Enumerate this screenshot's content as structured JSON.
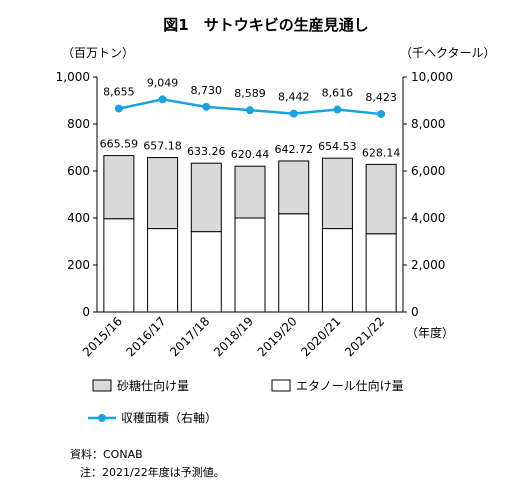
{
  "chart_data": {
    "type": "bar",
    "title": "図1　サトウキビの生産見通し",
    "left_unit": "（百万トン）",
    "right_unit": "（千ヘクタール）",
    "x_unit": "（年度）",
    "categories": [
      "2015/16",
      "2016/17",
      "2017/18",
      "2018/19",
      "2019/20",
      "2020/21",
      "2021/22"
    ],
    "left_ylim": [
      0,
      1000
    ],
    "left_ticks": [
      0,
      200,
      400,
      600,
      800,
      1000
    ],
    "left_tick_labels": [
      "0",
      "200",
      "400",
      "600",
      "800",
      "1,000"
    ],
    "right_ylim": [
      0,
      10000
    ],
    "right_ticks": [
      0,
      2000,
      4000,
      6000,
      8000,
      10000
    ],
    "right_tick_labels": [
      "0",
      "2,000",
      "4,000",
      "6,000",
      "8,000",
      "10,000"
    ],
    "series": [
      {
        "name": "エタノール仕向け量",
        "kind": "bar",
        "color": "#ffffff",
        "values": [
          397,
          355,
          342,
          400,
          418,
          355,
          333
        ]
      },
      {
        "name": "砂糖仕向け量",
        "kind": "bar",
        "color": "#d9d9d9",
        "values": [
          268.59,
          302.18,
          291.26,
          220.44,
          224.72,
          299.53,
          295.14
        ]
      },
      {
        "name": "収穫面積（右軸）",
        "kind": "line",
        "axis": "right",
        "color": "#1aa3e0",
        "values": [
          8655,
          9049,
          8730,
          8589,
          8442,
          8616,
          8423
        ]
      }
    ],
    "bar_total_labels": [
      "665.59",
      "657.18",
      "633.26",
      "620.44",
      "642.72",
      "654.53",
      "628.14"
    ],
    "line_labels": [
      "8,655",
      "9,049",
      "8,730",
      "8,589",
      "8,442",
      "8,616",
      "8,423"
    ],
    "grid": false,
    "legend_position": "bottom"
  },
  "notes": {
    "source": "資料：CONAB",
    "note": "注：2021/22年度は予測値。"
  }
}
